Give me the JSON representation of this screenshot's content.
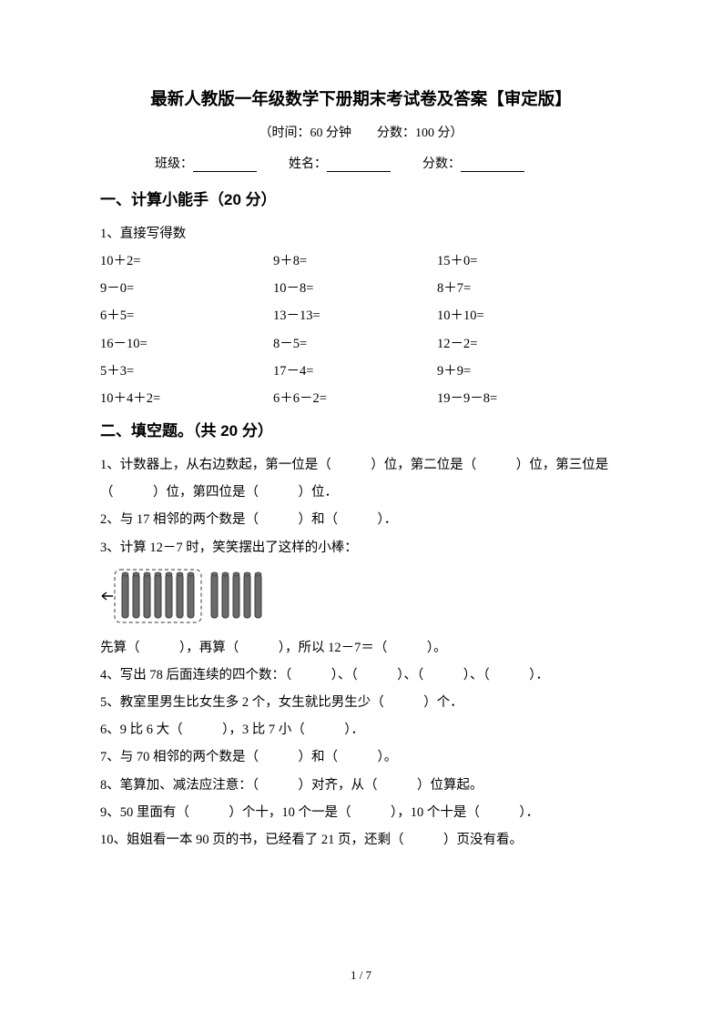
{
  "title": "最新人教版一年级数学下册期末考试卷及答案【审定版】",
  "subtitle": "（时间：60 分钟　　分数：100 分）",
  "form": {
    "class_label": "班级：",
    "name_label": "姓名：",
    "score_label": "分数："
  },
  "section1": {
    "title": "一、计算小能手（20 分）",
    "q1_label": "1、直接写得数",
    "rows": [
      {
        "a": "10＋2=",
        "b": "9＋8=",
        "c": "15＋0="
      },
      {
        "a": "9－0=",
        "b": "10－8=",
        "c": "8＋7="
      },
      {
        "a": "6＋5=",
        "b": "13－13=",
        "c": "10＋10="
      },
      {
        "a": "16－10=",
        "b": "8－5=",
        "c": "12－2="
      },
      {
        "a": "5＋3=",
        "b": "17－4=",
        "c": "9＋9="
      },
      {
        "a": "10＋4＋2=",
        "b": "6＋6－2=",
        "c": "19－9－8="
      }
    ]
  },
  "section2": {
    "title": "二、填空题。（共 20 分）",
    "q1": "1、计数器上，从右边数起，第一位是（　　　）位，第二位是（　　　）位，第三位是（　　　）位，第四位是（　　　）位．",
    "q2": "2、与 17 相邻的两个数是（　　　）和（　　　）．",
    "q3": "3、计算 12－7 时，笑笑摆出了这样的小棒：",
    "q3_after": "先算（　　　），再算（　　　），所以 12－7＝（　　　）。",
    "q4": "4、写出 78 后面连续的四个数：（　　　）、（　　　）、（　　　）、（　　　）．",
    "q5": "5、教室里男生比女生多 2 个，女生就比男生少（　　　）个．",
    "q6": "6、9 比 6 大（　　　），3 比 7 小（　　　）．",
    "q7": "7、与 70 相邻的两个数是（　　　）和（　　　）。",
    "q8": "8、笔算加、减法应注意：（　　　）对齐，从（　　　）位算起。",
    "q9": "9、50 里面有（　　　）个十，10 个一是（　　　），10 个十是（　　　）．",
    "q10": "10、姐姐看一本 90 页的书，已经看了 21 页，还剩（　　　）页没有看。"
  },
  "sticks": {
    "group1_count": 7,
    "group2_count": 5,
    "stick_color": "#6a6a6a",
    "stick_border": "#3a3a3a",
    "dashed_color": "#5a5a5a"
  },
  "page_number": "1 / 7"
}
